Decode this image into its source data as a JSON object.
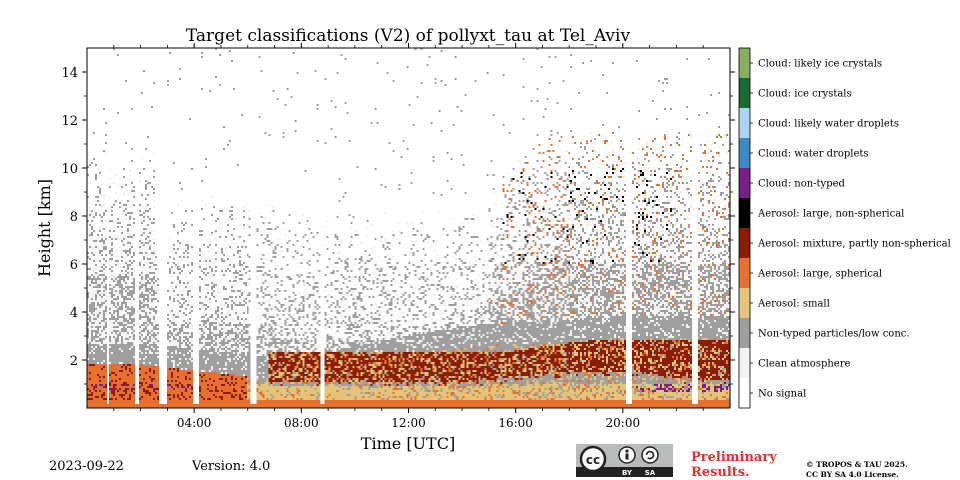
{
  "chart_data": {
    "type": "heatmap",
    "title": "Target classifications (V2) of pollyxt_tau at Tel_Aviv",
    "xlabel": "Time [UTC]",
    "ylabel": "Height [km]",
    "xlim_hours": [
      0,
      24
    ],
    "ylim_km": [
      0,
      15
    ],
    "x_ticks": [
      "04:00",
      "08:00",
      "12:00",
      "16:00",
      "20:00"
    ],
    "x_tick_hours": [
      4,
      8,
      12,
      16,
      20
    ],
    "y_ticks": [
      2,
      4,
      6,
      8,
      10,
      12,
      14
    ],
    "classes": [
      {
        "label": "No signal",
        "color": "#ffffff"
      },
      {
        "label": "Clean atmosphere",
        "color": "#f2f2f2"
      },
      {
        "label": "Non-typed particles/low conc.",
        "color": "#9f9f9f"
      },
      {
        "label": "Aerosol: small",
        "color": "#e4c478"
      },
      {
        "label": "Aerosol: large, spherical",
        "color": "#e8702f"
      },
      {
        "label": "Aerosol: mixture, partly non-spherical",
        "color": "#8b1e00"
      },
      {
        "label": "Aerosol: large, non-spherical",
        "color": "#000000"
      },
      {
        "label": "Cloud: non-typed",
        "color": "#7a1f8a"
      },
      {
        "label": "Cloud: water droplets",
        "color": "#3a8ac9"
      },
      {
        "label": "Cloud: likely water droplets",
        "color": "#aad4f2"
      },
      {
        "label": "Cloud: ice crystals",
        "color": "#1a6b2e"
      },
      {
        "label": "Cloud: likely ice crystals",
        "color": "#88b060"
      }
    ],
    "no_signal_gaps_hours": [
      [
        0.2,
        0.25
      ],
      [
        0.75,
        0.85
      ],
      [
        1.8,
        1.95
      ],
      [
        2.7,
        3.0
      ],
      [
        3.95,
        4.15
      ],
      [
        6.1,
        6.35
      ],
      [
        8.7,
        8.85
      ],
      [
        20.1,
        20.35
      ],
      [
        22.6,
        22.8
      ]
    ]
  },
  "footer": {
    "date": "2023-09-22",
    "version": "Version: 4.0",
    "cc_text": "cc",
    "cc_by": "BY",
    "cc_sa": "SA",
    "preliminary": "Preliminary\nResults.",
    "preliminary_line1": "Preliminary",
    "preliminary_line2": "Results.",
    "copyright_line1": "© TROPOS & TAU 2025.",
    "copyright_line2": "CC BY SA 4.0 License."
  },
  "colors": {
    "preliminary_text": "#e53030",
    "cc_badge_bg": "#b9bdb9",
    "cc_badge_dark": "#222222"
  }
}
